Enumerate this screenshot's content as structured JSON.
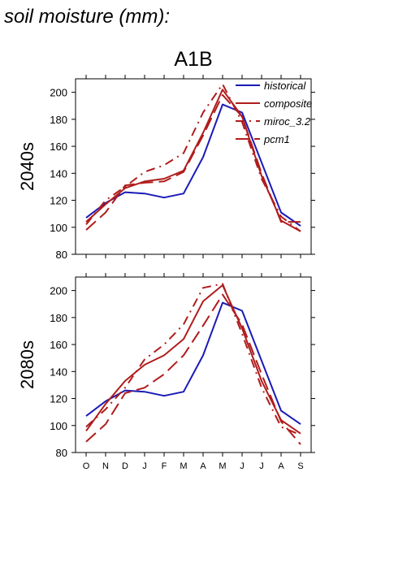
{
  "title": "soil moisture (mm):",
  "scenario": "A1B",
  "colors": {
    "historical": "#1a1ab8",
    "models": "#b01c1c"
  },
  "chart_data": [
    {
      "type": "line",
      "row_label": "2040s",
      "x": [
        "O",
        "N",
        "D",
        "J",
        "F",
        "M",
        "A",
        "M",
        "J",
        "J",
        "A",
        "S"
      ],
      "ylim": [
        80,
        210
      ],
      "yticks": [
        80,
        100,
        120,
        140,
        160,
        180,
        200
      ],
      "grid": false,
      "legend": "top-right",
      "series": [
        {
          "name": "historical",
          "style": "solid-blue",
          "values": [
            107,
            118,
            126,
            125,
            122,
            125,
            152,
            191,
            185,
            148,
            111,
            101
          ]
        },
        {
          "name": "composite",
          "style": "solid-red",
          "values": [
            104,
            117,
            129,
            134,
            136,
            142,
            170,
            202,
            182,
            138,
            105,
            97
          ]
        },
        {
          "name": "miroc_3.2",
          "style": "dash-dot-red",
          "values": [
            102,
            120,
            130,
            141,
            146,
            155,
            185,
            206,
            178,
            136,
            108,
            97
          ]
        },
        {
          "name": "pcm1",
          "style": "long-dash-red",
          "values": [
            98,
            111,
            131,
            133,
            134,
            141,
            168,
            198,
            182,
            140,
            104,
            104
          ]
        }
      ]
    },
    {
      "type": "line",
      "row_label": "2080s",
      "x": [
        "O",
        "N",
        "D",
        "J",
        "F",
        "M",
        "A",
        "M",
        "J",
        "J",
        "A",
        "S"
      ],
      "ylim": [
        80,
        210
      ],
      "yticks": [
        80,
        100,
        120,
        140,
        160,
        180,
        200
      ],
      "grid": false,
      "series": [
        {
          "name": "historical",
          "style": "solid-blue",
          "values": [
            107,
            118,
            126,
            125,
            122,
            125,
            152,
            191,
            185,
            148,
            111,
            101
          ]
        },
        {
          "name": "composite",
          "style": "solid-red",
          "values": [
            96,
            116,
            133,
            145,
            152,
            164,
            192,
            204,
            172,
            133,
            104,
            94
          ]
        },
        {
          "name": "miroc_3.2",
          "style": "dash-dot-red",
          "values": [
            99,
            112,
            128,
            149,
            160,
            175,
            202,
            205,
            168,
            128,
            99,
            93
          ]
        },
        {
          "name": "pcm1",
          "style": "long-dash-red",
          "values": [
            88,
            101,
            124,
            128,
            138,
            152,
            174,
            197,
            175,
            138,
            103,
            86
          ]
        }
      ]
    }
  ]
}
